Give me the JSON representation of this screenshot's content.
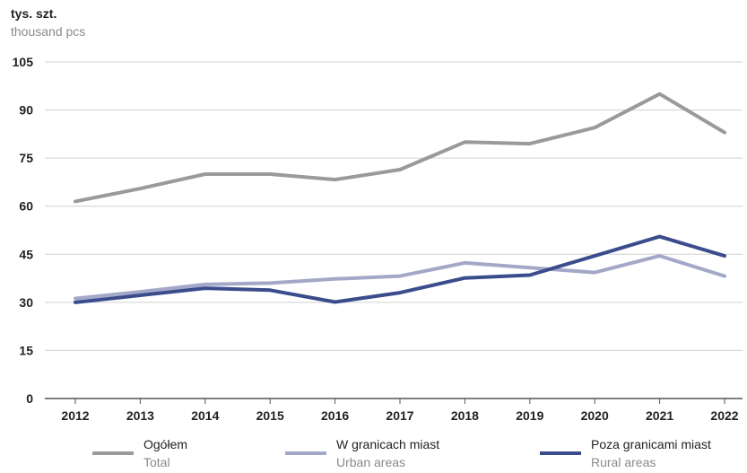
{
  "chart_data": {
    "type": "line",
    "unit_label": "tys. szt.",
    "unit_label_en": "thousand pcs",
    "categories": [
      "2012",
      "2013",
      "2014",
      "2015",
      "2016",
      "2017",
      "2018",
      "2019",
      "2020",
      "2021",
      "2022"
    ],
    "y_ticks": [
      0,
      15,
      30,
      45,
      60,
      75,
      90,
      105
    ],
    "ylim": [
      0,
      105
    ],
    "grid": true,
    "legend_position": "bottom",
    "series": [
      {
        "name": "Ogółem",
        "name_en": "Total",
        "color": "#9a9a9a",
        "values": [
          61.5,
          65.5,
          70.0,
          70.0,
          68.3,
          71.4,
          80.0,
          79.5,
          84.5,
          95.0,
          83.0
        ]
      },
      {
        "name": "W granicach miast",
        "name_en": "Urban areas",
        "color": "#a3a8c8",
        "values": [
          31.2,
          33.3,
          35.6,
          36.0,
          37.3,
          38.2,
          42.3,
          40.8,
          39.3,
          44.5,
          38.2
        ]
      },
      {
        "name": "Poza granicami miast",
        "name_en": "Rural areas",
        "color": "#3b4c8c",
        "values": [
          30.0,
          32.2,
          34.4,
          33.8,
          30.1,
          33.0,
          37.6,
          38.5,
          44.5,
          50.5,
          44.5
        ]
      }
    ]
  }
}
